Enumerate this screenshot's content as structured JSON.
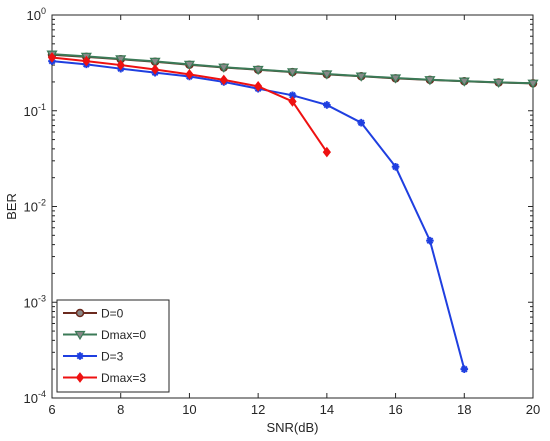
{
  "chart_data": {
    "type": "line",
    "title": "",
    "xlabel": "SNR(dB)",
    "ylabel": "BER",
    "xlim": [
      6,
      20
    ],
    "ylim": [
      0.0001,
      1
    ],
    "y_scale": "log",
    "grid": false,
    "legend_position": "bottom-left",
    "x_ticks": [
      6,
      8,
      10,
      12,
      14,
      16,
      18,
      20
    ],
    "y_ticks": [
      {
        "value": 1,
        "base": "10",
        "exp": "0"
      },
      {
        "value": 0.1,
        "base": "10",
        "exp": "-1"
      },
      {
        "value": 0.01,
        "base": "10",
        "exp": "-2"
      },
      {
        "value": 0.001,
        "base": "10",
        "exp": "-3"
      },
      {
        "value": 0.0001,
        "base": "10",
        "exp": "-4"
      }
    ],
    "series": [
      {
        "name": "D=0",
        "color": "#6b2a1e",
        "marker": "circle",
        "x": [
          6,
          7,
          8,
          9,
          10,
          11,
          12,
          13,
          14,
          15,
          16,
          17,
          18,
          19,
          20
        ],
        "y": [
          0.385,
          0.365,
          0.345,
          0.325,
          0.302,
          0.283,
          0.268,
          0.253,
          0.24,
          0.229,
          0.218,
          0.21,
          0.203,
          0.197,
          0.193
        ]
      },
      {
        "name": "Dmax=0",
        "color": "#3b7a57",
        "marker": "triangle-down",
        "x": [
          6,
          7,
          8,
          9,
          10,
          11,
          12,
          13,
          14,
          15,
          16,
          17,
          18,
          19,
          20
        ],
        "y": [
          0.39,
          0.37,
          0.348,
          0.328,
          0.305,
          0.285,
          0.27,
          0.255,
          0.242,
          0.23,
          0.22,
          0.211,
          0.204,
          0.198,
          0.194
        ]
      },
      {
        "name": "D=3",
        "color": "#1f3fe0",
        "marker": "star",
        "x": [
          6,
          7,
          8,
          9,
          10,
          11,
          12,
          13,
          14,
          15,
          16,
          17,
          18
        ],
        "y": [
          0.33,
          0.305,
          0.275,
          0.25,
          0.228,
          0.2,
          0.17,
          0.145,
          0.115,
          0.075,
          0.026,
          0.0044,
          0.0002
        ]
      },
      {
        "name": "Dmax=3",
        "color": "#ee1111",
        "marker": "diamond",
        "x": [
          6,
          7,
          8,
          9,
          10,
          11,
          12,
          13,
          14
        ],
        "y": [
          0.36,
          0.33,
          0.3,
          0.27,
          0.24,
          0.21,
          0.18,
          0.125,
          0.037
        ]
      }
    ]
  }
}
